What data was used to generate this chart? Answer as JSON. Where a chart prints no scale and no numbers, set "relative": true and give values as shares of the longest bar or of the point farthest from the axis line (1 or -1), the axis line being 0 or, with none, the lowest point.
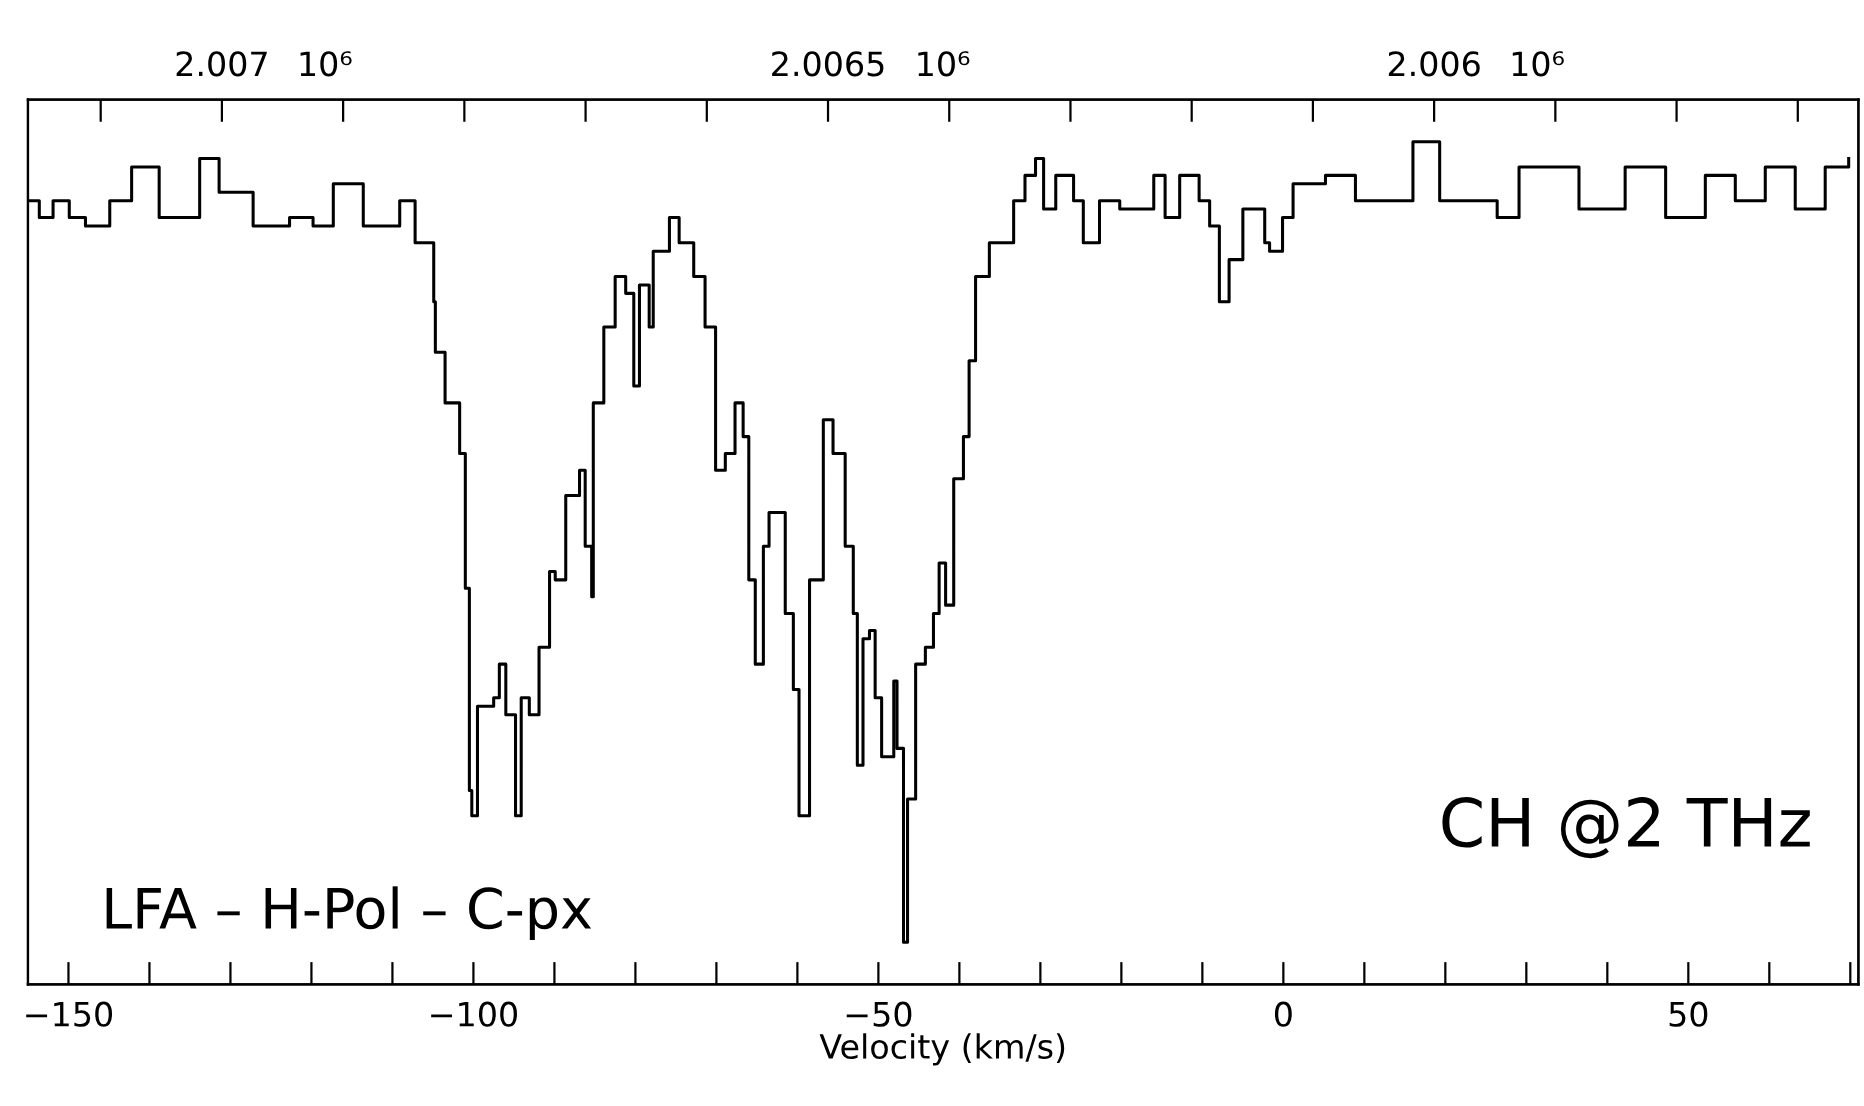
{
  "chart_data": {
    "type": "step",
    "relative": true,
    "xlabel": "Velocity (km/s)",
    "annotations": [
      "LFA – H-Pol – C-px",
      "CH @2 THz"
    ],
    "xlim": [
      -155,
      71
    ],
    "xticks": [
      {
        "value": -150,
        "label": "−150"
      },
      {
        "value": -140,
        "label": null
      },
      {
        "value": -130,
        "label": null
      },
      {
        "value": -120,
        "label": null
      },
      {
        "value": -110,
        "label": null
      },
      {
        "value": -100,
        "label": "−100"
      },
      {
        "value": -90,
        "label": null
      },
      {
        "value": -80,
        "label": null
      },
      {
        "value": -70,
        "label": null
      },
      {
        "value": -60,
        "label": null
      },
      {
        "value": -50,
        "label": "−50"
      },
      {
        "value": -40,
        "label": null
      },
      {
        "value": -30,
        "label": null
      },
      {
        "value": -20,
        "label": null
      },
      {
        "value": -10,
        "label": null
      },
      0,
      {
        "value": 10,
        "label": null
      },
      {
        "value": 20,
        "label": null
      },
      {
        "value": 30,
        "label": null
      },
      {
        "value": 40,
        "label": null
      },
      50,
      {
        "value": 60,
        "label": null
      },
      {
        "value": 70,
        "label": null
      }
    ],
    "x2lim": [
      2.00716,
      2.00565
    ],
    "x2label": "10⁶",
    "x2ticks": [
      {
        "value": 2.0071,
        "label": null
      },
      2.007,
      {
        "value": 2.0069,
        "label": null
      },
      {
        "value": 2.0068,
        "label": null
      },
      {
        "value": 2.0067,
        "label": null
      },
      {
        "value": 2.0066,
        "label": null
      },
      2.0065,
      {
        "value": 2.0064,
        "label": null
      },
      {
        "value": 2.0063,
        "label": null
      },
      {
        "value": 2.0062,
        "label": null
      },
      {
        "value": 2.0061,
        "label": null
      },
      2.006,
      {
        "value": 2.0059,
        "label": null
      },
      {
        "value": 2.0058,
        "label": null
      },
      {
        "value": 2.0057,
        "label": null
      }
    ],
    "series": [
      {
        "color": "#000000",
        "x": [
          -154.8,
          -153.6,
          -151.9,
          -149.9,
          -147.9,
          -144.9,
          -142.2,
          -138.8,
          -133.8,
          -131.4,
          -127.2,
          -122.7,
          -119.8,
          -117.3,
          -113.6,
          -109.1,
          -107.2,
          -105.9,
          -104.9,
          -104.7,
          -103.5,
          -102.2,
          -101.7,
          -101.0,
          -100.5,
          -100.2,
          -99.5,
          -97.5,
          -96.8,
          -96.0,
          -94.8,
          -94.1,
          -93.1,
          -91.9,
          -90.6,
          -89.9,
          -88.6,
          -86.9,
          -86.2,
          -85.4,
          -85.2,
          -83.9,
          -82.5,
          -81.2,
          -80.2,
          -79.5,
          -78.3,
          -77.8,
          -75.8,
          -74.6,
          -72.8,
          -71.4,
          -70.1,
          -68.9,
          -67.7,
          -66.7,
          -66.0,
          -65.2,
          -64.2,
          -63.5,
          -62.2,
          -61.5,
          -60.5,
          -59.8,
          -58.5,
          -56.8,
          -55.6,
          -54.1,
          -53.1,
          -52.6,
          -51.9,
          -51.1,
          -50.4,
          -49.6,
          -48.1,
          -47.7,
          -46.9,
          -46.4,
          -45.4,
          -44.2,
          -43.2,
          -42.5,
          -41.7,
          -40.7,
          -39.5,
          -38.8,
          -38.0,
          -36.3,
          -35.1,
          -33.3,
          -31.9,
          -30.6,
          -29.6,
          -28.1,
          -25.9,
          -24.7,
          -22.7,
          -20.2,
          -16.0,
          -14.6,
          -12.8,
          -10.4,
          -9.1,
          -7.9,
          -6.7,
          -5.0,
          -2.3,
          -1.7,
          -0.1,
          1.2,
          5.2,
          8.9,
          16.0,
          19.3,
          26.4,
          29.1,
          36.5,
          42.2,
          47.2,
          52.1,
          55.8,
          59.5,
          63.2,
          66.9,
          69.8
        ],
        "values": [
          0.93,
          0.91,
          0.93,
          0.91,
          0.9,
          0.93,
          0.97,
          0.91,
          0.98,
          0.94,
          0.9,
          0.91,
          0.9,
          0.95,
          0.9,
          0.93,
          0.88,
          0.88,
          0.81,
          0.75,
          0.69,
          0.69,
          0.63,
          0.47,
          0.23,
          0.2,
          0.33,
          0.34,
          0.38,
          0.32,
          0.2,
          0.34,
          0.32,
          0.4,
          0.49,
          0.48,
          0.58,
          0.61,
          0.52,
          0.46,
          0.69,
          0.78,
          0.84,
          0.82,
          0.71,
          0.83,
          0.78,
          0.87,
          0.91,
          0.88,
          0.84,
          0.78,
          0.61,
          0.63,
          0.69,
          0.65,
          0.48,
          0.38,
          0.52,
          0.56,
          0.56,
          0.44,
          0.35,
          0.2,
          0.48,
          0.67,
          0.63,
          0.52,
          0.44,
          0.26,
          0.41,
          0.42,
          0.34,
          0.27,
          0.36,
          0.28,
          0.05,
          0.22,
          0.38,
          0.4,
          0.44,
          0.5,
          0.45,
          0.6,
          0.65,
          0.74,
          0.84,
          0.88,
          0.88,
          0.93,
          0.96,
          0.98,
          0.92,
          0.96,
          0.93,
          0.88,
          0.93,
          0.92,
          0.96,
          0.91,
          0.96,
          0.93,
          0.9,
          0.81,
          0.86,
          0.92,
          0.88,
          0.87,
          0.91,
          0.95,
          0.96,
          0.93,
          1.0,
          0.93,
          0.91,
          0.97,
          0.92,
          0.97,
          0.91,
          0.96,
          0.93,
          0.97,
          0.92,
          0.97,
          0.98
        ]
      }
    ]
  }
}
